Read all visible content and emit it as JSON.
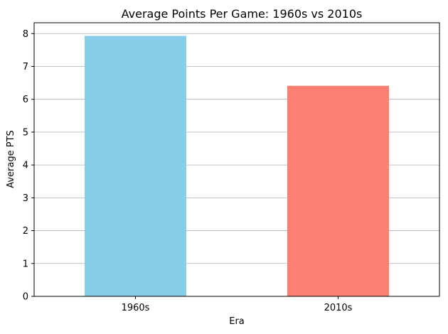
{
  "chart_data": {
    "type": "bar",
    "title": "Average Points Per Game: 1960s vs 2010s",
    "xlabel": "Era",
    "ylabel": "Average PTS",
    "categories": [
      "1960s",
      "2010s"
    ],
    "values": [
      7.93,
      6.41
    ],
    "colors": [
      "#87ceeb",
      "#fa8072"
    ],
    "ylim": [
      0,
      8.33
    ],
    "yticks": [
      0,
      1,
      2,
      3,
      4,
      5,
      6,
      7,
      8
    ],
    "grid": "horizontal",
    "legend": "none"
  }
}
